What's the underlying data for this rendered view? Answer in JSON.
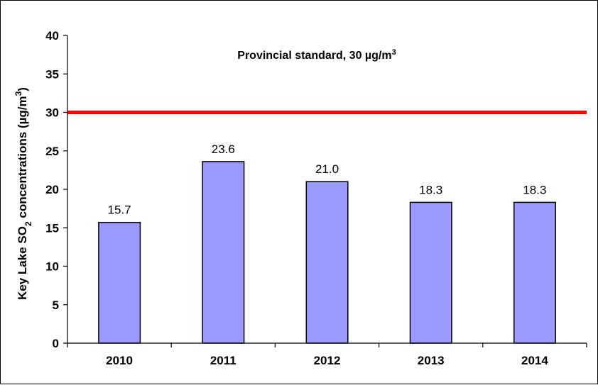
{
  "chart_data": {
    "type": "bar",
    "categories": [
      "2010",
      "2011",
      "2012",
      "2013",
      "2014"
    ],
    "values": [
      15.7,
      23.6,
      21.0,
      18.3,
      18.3
    ],
    "data_labels": [
      "15.7",
      "23.6",
      "21.0",
      "18.3",
      "18.3"
    ],
    "xlabel": "",
    "ylabel": {
      "prefix": "Key Lake SO",
      "subscript": "2",
      "middle": " concentrations (µg/m",
      "superscript": "3",
      "suffix": ")"
    },
    "ylim": [
      0,
      40
    ],
    "yticks": [
      0,
      5,
      10,
      15,
      20,
      25,
      30,
      35,
      40
    ],
    "grid": false,
    "legend": "none",
    "reference_line": {
      "value": 30,
      "label_main": "Provincial standard, 30 µg/m",
      "label_sup": "3",
      "color": "#ff0000"
    },
    "bar_color": "#9999ff",
    "bar_edge_color": "#000000"
  }
}
